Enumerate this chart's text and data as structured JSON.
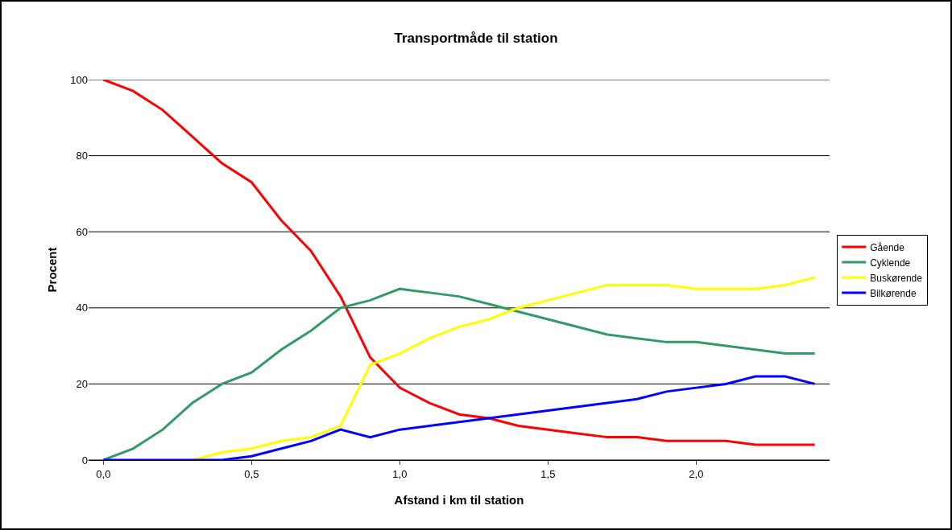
{
  "chart_data": {
    "type": "line",
    "title": "Transportmåde til station",
    "xlabel": "Afstand i km til station",
    "ylabel": "Procent",
    "x": [
      0,
      0.1,
      0.2,
      0.3,
      0.4,
      0.5,
      0.6,
      0.7,
      0.8,
      0.9,
      1.0,
      1.1,
      1.2,
      1.3,
      1.4,
      1.5,
      1.6,
      1.7,
      1.8,
      1.9,
      2.0,
      2.1,
      2.2,
      2.3,
      2.4
    ],
    "series": [
      {
        "name": "Gående",
        "color": "#ff0000",
        "values": [
          100,
          97,
          92,
          85,
          78,
          73,
          63,
          55,
          43,
          27,
          19,
          15,
          12,
          11,
          9,
          8,
          7,
          6,
          6,
          5,
          5,
          5,
          4,
          4,
          4
        ]
      },
      {
        "name": "Cyklende",
        "color": "#339966",
        "values": [
          0,
          3,
          8,
          15,
          20,
          23,
          29,
          34,
          40,
          42,
          45,
          44,
          43,
          41,
          39,
          37,
          35,
          33,
          32,
          31,
          31,
          30,
          29,
          28,
          28
        ]
      },
      {
        "name": "Buskørende",
        "color": "#ffff00",
        "values": [
          null,
          null,
          null,
          0,
          2,
          3,
          5,
          6,
          9,
          25,
          28,
          32,
          35,
          37,
          40,
          42,
          44,
          46,
          46,
          46,
          45,
          45,
          45,
          46,
          48
        ]
      },
      {
        "name": "Bilkørende",
        "color": "#0000ff",
        "values": [
          0,
          0,
          0,
          0,
          0,
          1,
          3,
          5,
          8,
          6,
          8,
          9,
          10,
          11,
          12,
          13,
          14,
          15,
          16,
          18,
          19,
          20,
          22,
          22,
          20
        ]
      }
    ],
    "xlim": [
      -0.05,
      2.45
    ],
    "xticks": [
      {
        "value": 0,
        "label": "0,0"
      },
      {
        "value": 0.5,
        "label": "0,5"
      },
      {
        "value": 1,
        "label": "1,0"
      },
      {
        "value": 1.5,
        "label": "1,5"
      },
      {
        "value": 2,
        "label": "2,0"
      }
    ],
    "ylim": [
      0,
      100
    ],
    "yticks": [
      0,
      20,
      40,
      60,
      80,
      100
    ],
    "grid": "y",
    "legend": "right",
    "marker": "none",
    "line_style": "solid"
  }
}
